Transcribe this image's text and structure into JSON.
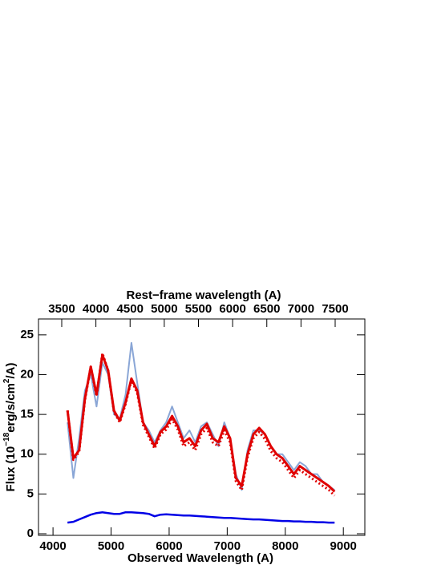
{
  "chart_data": {
    "type": "line",
    "xlabel": "Observed Wavelength (A)",
    "x2label": "Rest−frame wavelength (A)",
    "ylabel": [
      "Flux (10",
      "−18",
      "erg/s/cm",
      "2",
      "/A)"
    ],
    "x": [
      4250,
      4350,
      4450,
      4550,
      4650,
      4750,
      4850,
      4950,
      5050,
      5150,
      5250,
      5350,
      5450,
      5550,
      5650,
      5750,
      5850,
      5950,
      6050,
      6150,
      6250,
      6350,
      6450,
      6550,
      6650,
      6750,
      6850,
      6950,
      7050,
      7150,
      7250,
      7350,
      7450,
      7550,
      7650,
      7750,
      7850,
      7950,
      8050,
      8150,
      8250,
      8350,
      8450,
      8550,
      8650,
      8750,
      8850
    ],
    "series": [
      {
        "color": "#8aa6d6",
        "width": 2,
        "style": "solid",
        "values": [
          14,
          7,
          12,
          18,
          20,
          16,
          21.5,
          20,
          15,
          14.5,
          17.5,
          24,
          19,
          14,
          13,
          11.5,
          13,
          14,
          16,
          14,
          12,
          13,
          11.5,
          13.5,
          14,
          12.5,
          11,
          14,
          12,
          7.5,
          5.5,
          10.5,
          13,
          13,
          12.5,
          11,
          10,
          10,
          9,
          8,
          9,
          8.5,
          7.5,
          7.5,
          6.5,
          6,
          5.5
        ]
      },
      {
        "color": "#e00000",
        "width": 3,
        "style": "dotted",
        "values": [
          15.5,
          9.3,
          10.3,
          16.8,
          21,
          17.3,
          22.7,
          20.5,
          15.3,
          14,
          16.3,
          19.3,
          17.7,
          13.7,
          12.2,
          10.7,
          12.5,
          13.1,
          14.4,
          13.1,
          11,
          11.5,
          10.5,
          12.5,
          13.3,
          11.5,
          11,
          13,
          11.5,
          6.6,
          5.5,
          9.6,
          12,
          12.8,
          11.9,
          10.4,
          9.5,
          9,
          8,
          7,
          8,
          7.5,
          7,
          6.5,
          6,
          5.5,
          4.8
        ]
      },
      {
        "color": "#e00000",
        "width": 3,
        "style": "solid",
        "values": [
          15.5,
          9.5,
          10.5,
          17,
          21,
          17.5,
          22.5,
          20.5,
          15.5,
          14.2,
          16.5,
          19.5,
          18,
          14,
          12.5,
          11,
          12.8,
          13.5,
          14.8,
          13.5,
          11.5,
          12,
          11,
          13,
          13.8,
          12,
          11.5,
          13.5,
          12,
          7,
          6,
          10,
          12.5,
          13.3,
          12.5,
          11,
          10,
          9.5,
          8.5,
          7.5,
          8.5,
          8,
          7.5,
          7,
          6.5,
          6,
          5.3
        ]
      },
      {
        "color": "#0000e6",
        "width": 2.5,
        "style": "solid",
        "values": [
          1.4,
          1.5,
          1.8,
          2.1,
          2.4,
          2.6,
          2.7,
          2.6,
          2.5,
          2.5,
          2.7,
          2.7,
          2.65,
          2.6,
          2.5,
          2.2,
          2.4,
          2.45,
          2.4,
          2.35,
          2.3,
          2.3,
          2.25,
          2.2,
          2.15,
          2.1,
          2.05,
          2.0,
          2.0,
          1.95,
          1.9,
          1.85,
          1.8,
          1.8,
          1.75,
          1.7,
          1.65,
          1.6,
          1.6,
          1.55,
          1.55,
          1.5,
          1.5,
          1.45,
          1.45,
          1.4,
          1.4
        ]
      }
    ],
    "xlim": [
      3750,
      9370
    ],
    "xticks": [
      4000,
      5000,
      6000,
      7000,
      8000,
      9000
    ],
    "x2lim": [
      3160,
      7934
    ],
    "x2ticks": [
      3500,
      4000,
      4500,
      5000,
      5500,
      6000,
      6500,
      7000,
      7500
    ],
    "ylim": [
      -0.2,
      27
    ],
    "yticks": [
      0,
      5,
      10,
      15,
      20,
      25
    ]
  }
}
